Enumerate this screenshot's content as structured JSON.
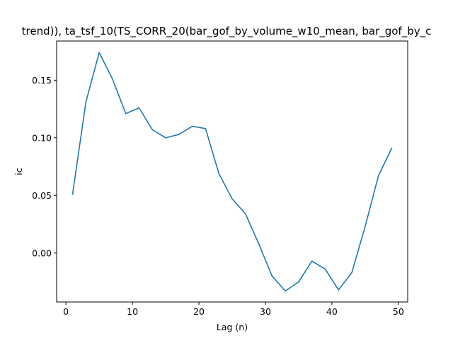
{
  "chart_data": {
    "type": "line",
    "title": "trend)), ta_tsf_10(TS_CORR_20(bar_gof_by_volume_w10_mean, bar_gof_by_c",
    "xlabel": "Lag (n)",
    "ylabel": "ic",
    "xlim": [
      -1.4,
      51.4
    ],
    "ylim": [
      -0.0425,
      0.184
    ],
    "xticks": [
      0,
      10,
      20,
      30,
      40,
      50
    ],
    "xtick_labels": [
      "0",
      "10",
      "20",
      "30",
      "40",
      "50"
    ],
    "yticks": [
      0.0,
      0.05,
      0.1,
      0.15
    ],
    "ytick_labels": [
      "0.00",
      "0.05",
      "0.10",
      "0.15"
    ],
    "grid": false,
    "line_color": "#1f77b4",
    "series": [
      {
        "x": [
          1,
          3,
          5,
          7,
          9,
          11,
          13,
          15,
          17,
          19,
          21,
          23,
          25,
          27,
          29,
          31,
          33,
          35,
          37,
          39,
          41,
          43,
          45,
          47,
          49
        ],
        "values": [
          0.051,
          0.131,
          0.174,
          0.151,
          0.121,
          0.126,
          0.107,
          0.1,
          0.103,
          0.11,
          0.108,
          0.069,
          0.047,
          0.034,
          0.008,
          -0.02,
          -0.033,
          -0.025,
          -0.007,
          -0.014,
          -0.032,
          -0.017,
          0.023,
          0.067,
          0.091
        ]
      }
    ]
  }
}
